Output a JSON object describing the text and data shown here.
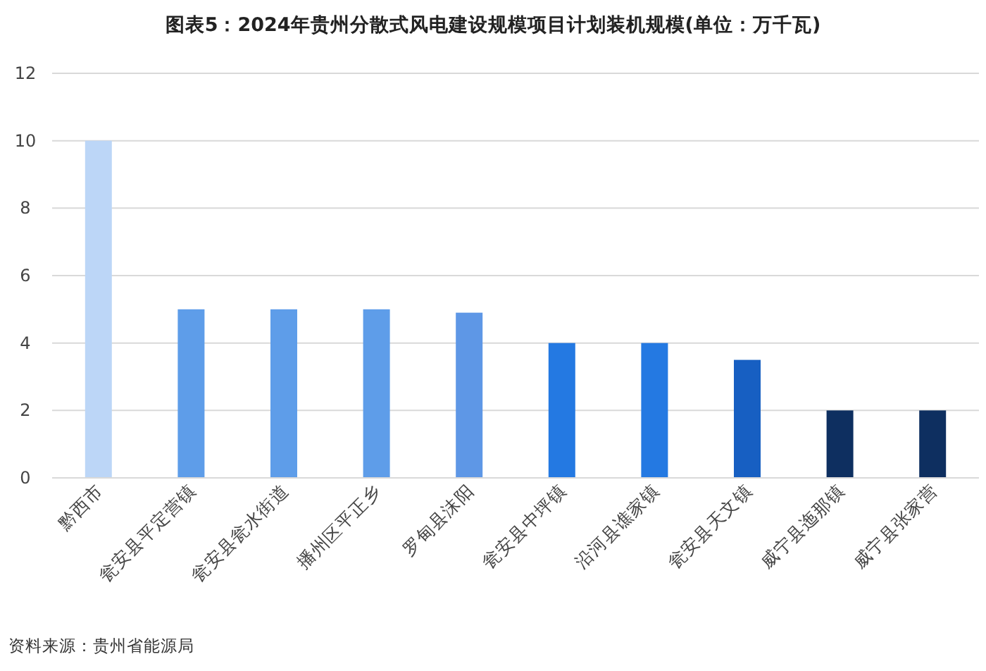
{
  "chart_data": {
    "type": "bar",
    "title": "图表5：2024年贵州分散式风电建设规模项目计划装机规模(单位：万千瓦)",
    "categories": [
      "黔西市",
      "瓮安县平定营镇",
      "瓮安县瓮水街道",
      "播州区平正乡",
      "罗甸县沫阳",
      "瓮安县中坪镇",
      "沿河县谯家镇",
      "瓮安县天文镇",
      "威宁县迤那镇",
      "威宁县张家营"
    ],
    "values": [
      10,
      5,
      5,
      5,
      4.9,
      4,
      4,
      3.5,
      2,
      2
    ],
    "colors": [
      "#bcd6f7",
      "#5e9de9",
      "#5e9de9",
      "#5e9de9",
      "#5e97e6",
      "#2479e2",
      "#2479e2",
      "#175fc2",
      "#0e2f60",
      "#0e2f60"
    ],
    "ylim": [
      0,
      12
    ],
    "yticks": [
      0,
      2,
      4,
      6,
      8,
      10,
      12
    ],
    "grid": "y",
    "annotations": [
      "资料来源：贵州省能源局"
    ]
  }
}
